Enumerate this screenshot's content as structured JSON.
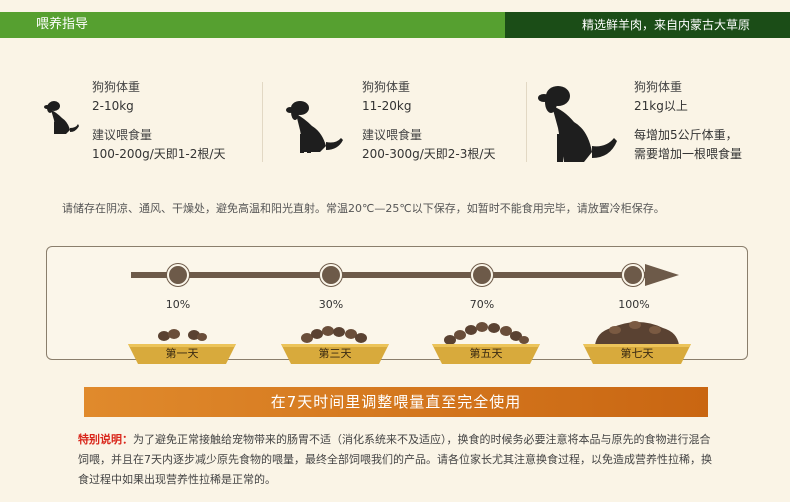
{
  "header": {
    "title": "喂养指导",
    "slogan": "精选鲜羊肉，来自内蒙古大草原"
  },
  "dogs": [
    {
      "weight_label": "狗狗体重",
      "weight": "2-10kg",
      "feed_label": "建议喂食量",
      "feed": "100-200g/天即1-2根/天"
    },
    {
      "weight_label": "狗狗体重",
      "weight": "11-20kg",
      "feed_label": "建议喂食量",
      "feed": "200-300g/天即2-3根/天"
    },
    {
      "weight_label": "狗狗体重",
      "weight": "21kg以上",
      "feed_line1": "每增加5公斤体重，",
      "feed_line2": "需要增加一根喂食量"
    }
  ],
  "storage_note": "请储存在阴凉、通风、干燥处，避免高温和阳光直射。常温20℃—25℃以下保存，如暂时不能食用完毕，请放置冷柜保存。",
  "progress": [
    {
      "percent": "10%",
      "day": "第一天"
    },
    {
      "percent": "30%",
      "day": "第三天"
    },
    {
      "percent": "70%",
      "day": "第五天"
    },
    {
      "percent": "100%",
      "day": "第七天"
    }
  ],
  "banner": "在7天时间里调整喂量直至完全使用",
  "note": {
    "label": "特别说明：",
    "text": "为了避免正常接触给宠物带来的肠胃不适（消化系统来不及适应），换食的时候务必要注意将本品与原先的食物进行混合饲喂，并且在7天内逐步减少原先食物的喂量，最终全部饲喂我们的产品。请各位家长尤其注意换食过程，以免造成营养性拉稀，换食过程中如果出现营养性拉稀是正常的。"
  },
  "colors": {
    "header_green": "#56a030",
    "header_dark_green": "#1b4d17",
    "banner_orange": "#e08a2c",
    "arrow_brown": "#6d5a49",
    "bowl_gold": "#d8aa3c",
    "note_red": "#d9261b"
  }
}
